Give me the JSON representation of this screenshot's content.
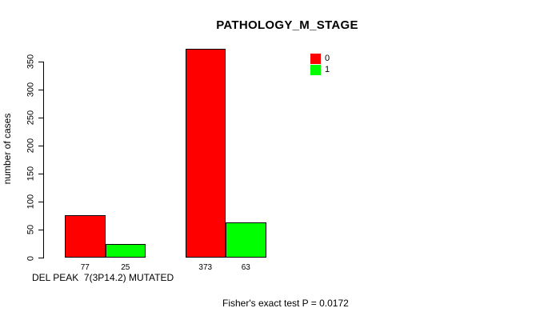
{
  "chart_data": {
    "type": "bar",
    "title": "PATHOLOGY_M_STAGE",
    "ylabel": "number of cases",
    "xlabel": "DEL PEAK  7(3P14.2) MUTATED",
    "footer": "Fisher's exact test P = 0.0172",
    "categories": [
      "DEL PEAK 7(3P14.2)",
      "MUTATED"
    ],
    "series": [
      {
        "name": "0",
        "color": "#FF0000",
        "values": [
          77,
          373
        ]
      },
      {
        "name": "1",
        "color": "#00FF00",
        "values": [
          25,
          63
        ]
      }
    ],
    "bar_value_labels": [
      [
        "77",
        "373"
      ],
      [
        "25",
        "63"
      ]
    ],
    "ylim": [
      0,
      350
    ],
    "yticks": [
      0,
      50,
      100,
      150,
      200,
      250,
      300,
      350
    ],
    "grid": false,
    "legend": {
      "position": "top-right",
      "entries": [
        {
          "label": "0",
          "color": "#FF0000"
        },
        {
          "label": "1",
          "color": "#00FF00"
        }
      ]
    },
    "colors": {
      "background": "#FFFFFF",
      "axis": "#000000",
      "text": "#000000",
      "bar_border": "#000000"
    }
  }
}
